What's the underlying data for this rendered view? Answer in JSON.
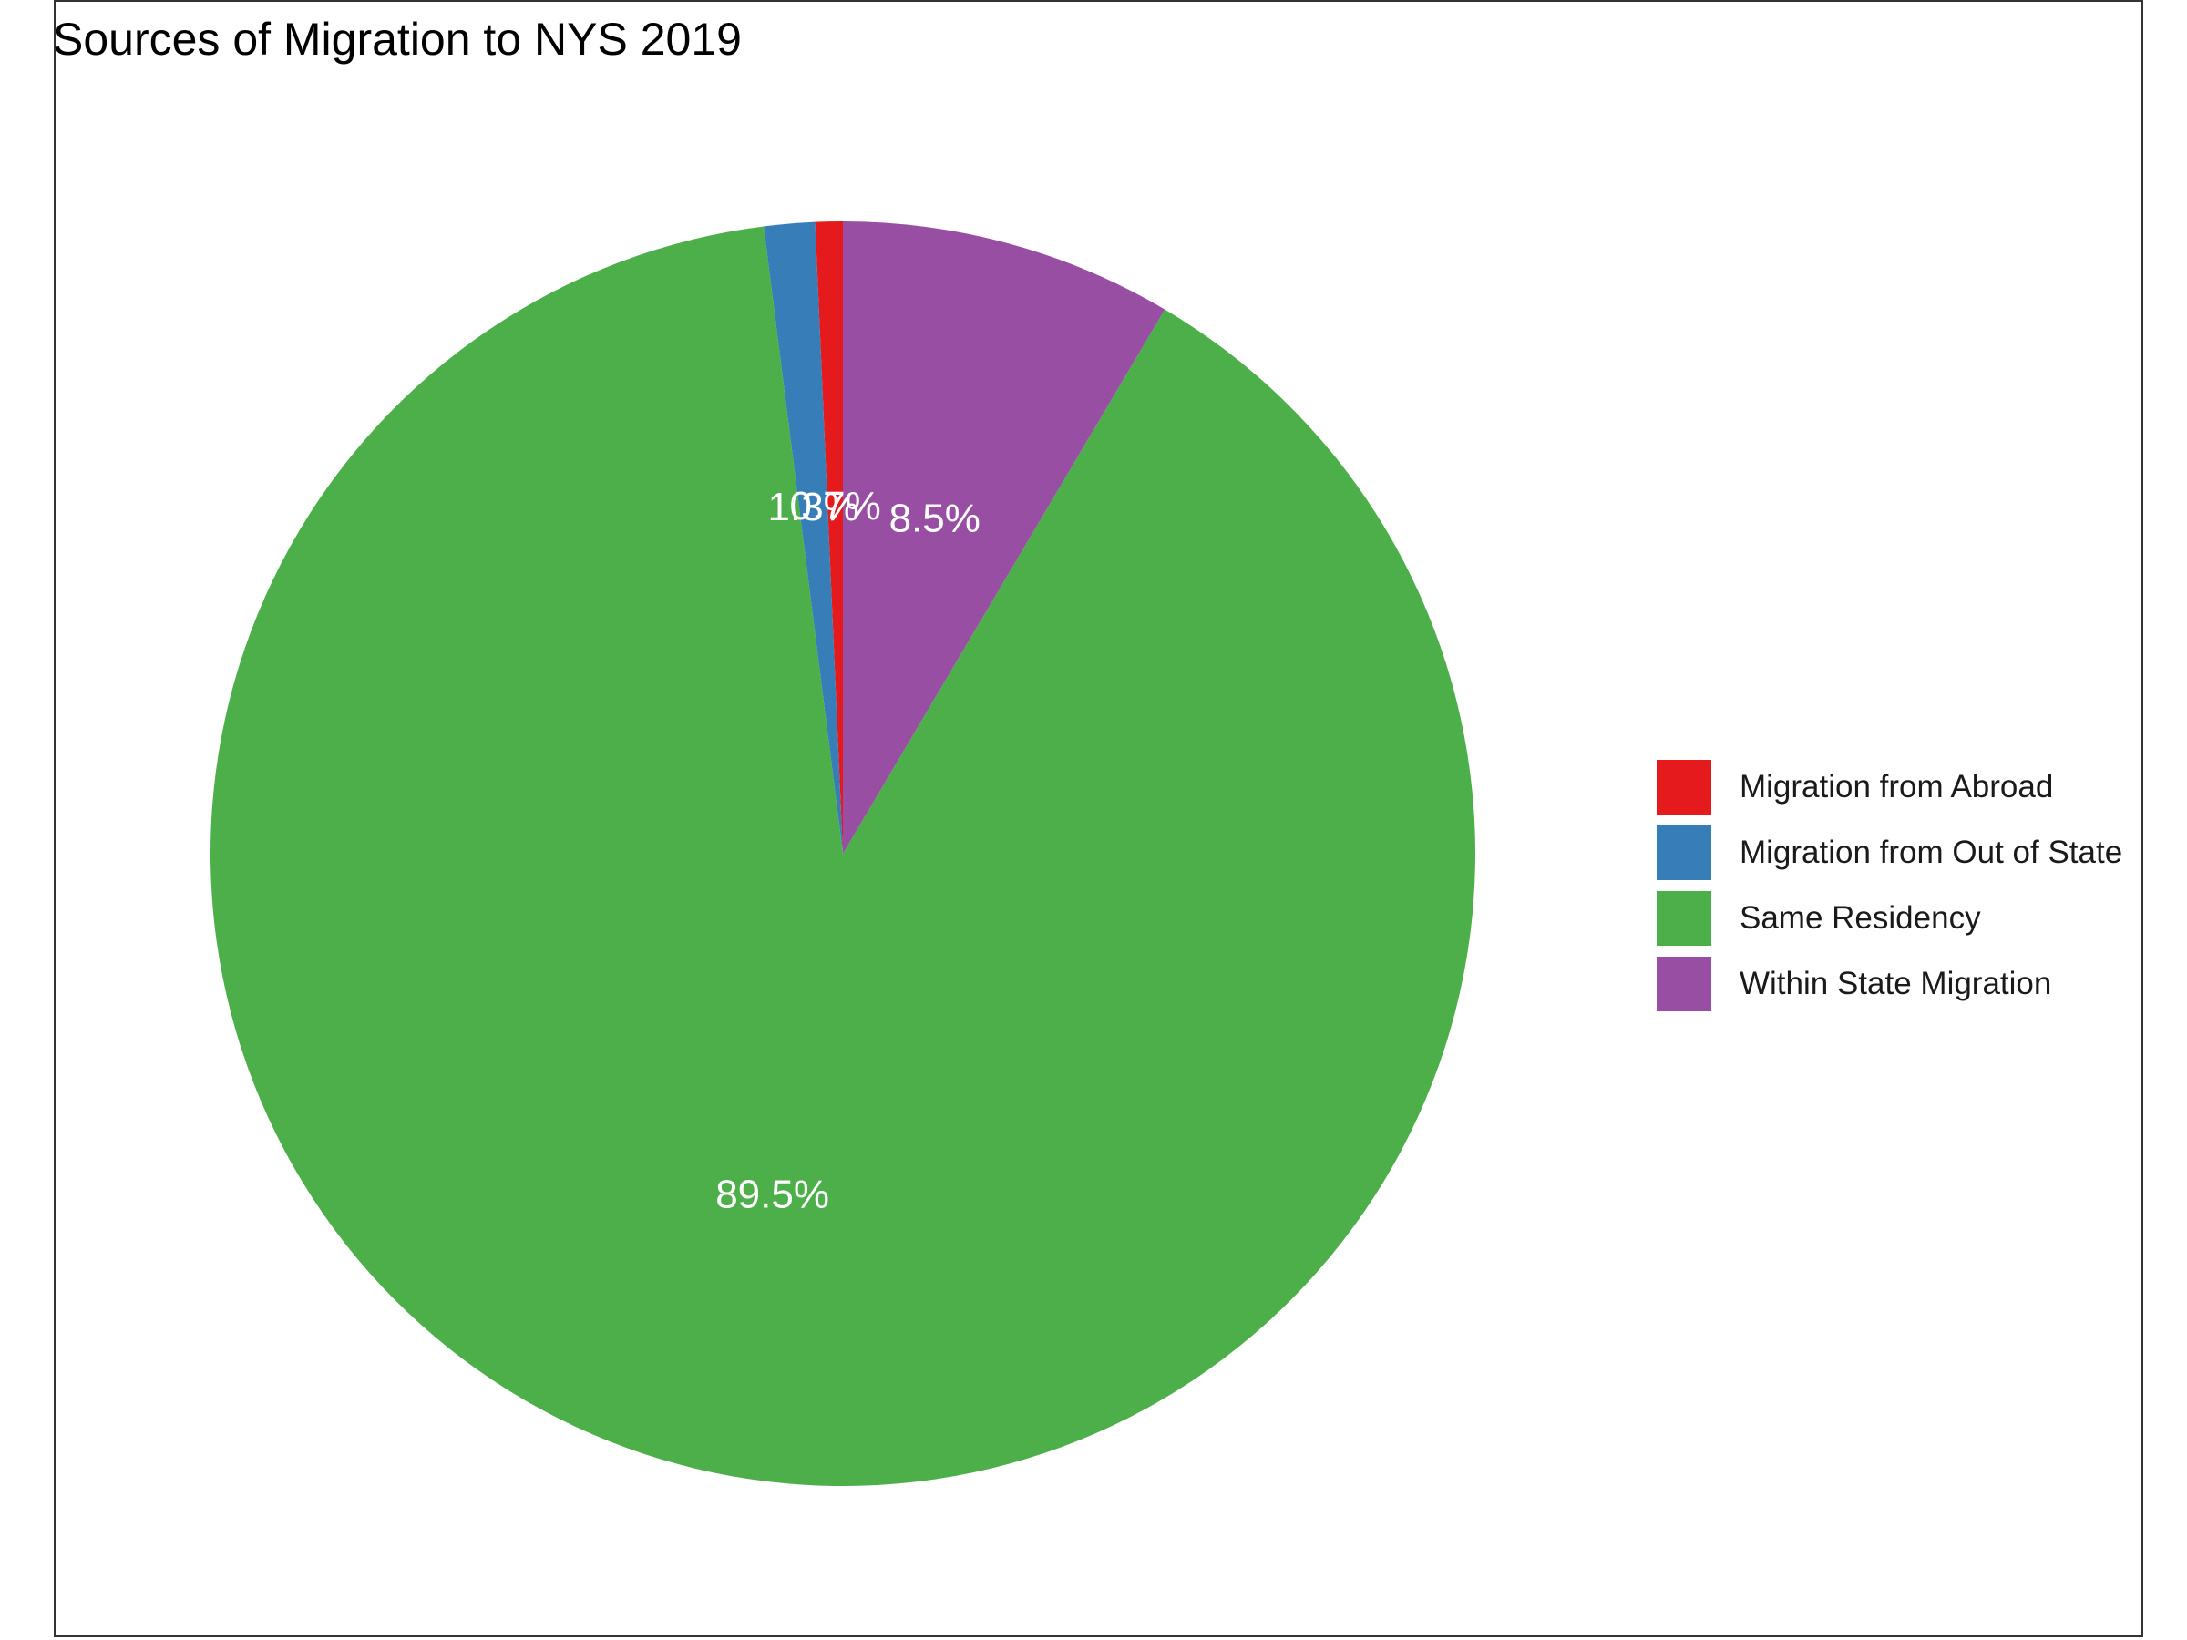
{
  "chart_data": {
    "type": "pie",
    "title": "Sources of Migration to NYS 2019",
    "categories": [
      "Migration from Abroad",
      "Migration from Out of State",
      "Same Residency",
      "Within State Migration"
    ],
    "values": [
      0.7,
      1.3,
      89.5,
      8.5
    ],
    "labels": [
      "0.7%",
      "1.3%",
      "89.5%",
      "8.5%"
    ],
    "colors": [
      "#E41A1C",
      "#377EB8",
      "#4DAF4A",
      "#984EA3"
    ],
    "direction": "counterclockwise",
    "start": "top",
    "legend_position": "right"
  }
}
